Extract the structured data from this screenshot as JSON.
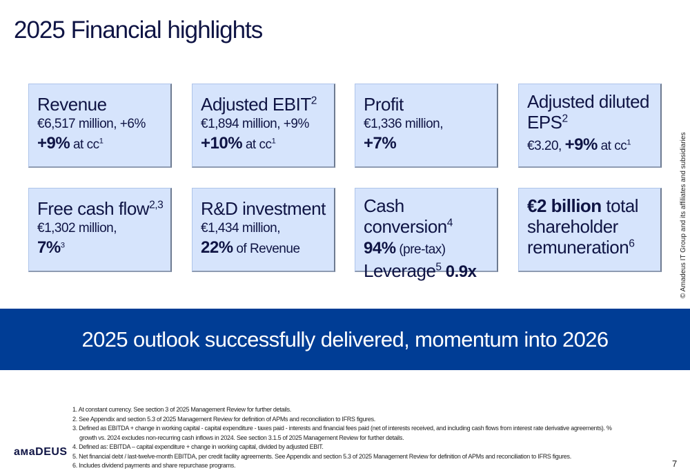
{
  "title": "2025 Financial highlights",
  "boxes": {
    "revenue": {
      "title": "Revenue",
      "line1": "€6,517 million, +6%",
      "bold": "+9%",
      "rest": " at cc",
      "sup": "1"
    },
    "ebit": {
      "title": "Adjusted EBIT",
      "title_sup": "2",
      "line1": "€1,894 million, +9%",
      "bold": "+10%",
      "rest": " at cc",
      "sup": "1"
    },
    "profit": {
      "title": "Profit",
      "line1": "€1,336 million,",
      "bold": "+7%"
    },
    "eps": {
      "title": "Adjusted diluted",
      "title2": "EPS",
      "title_sup": "2",
      "pre": "€3.20, ",
      "bold": "+9%",
      "rest": " at cc",
      "sup": "1"
    },
    "fcf": {
      "title": "Free cash flow",
      "title_sup": "2,3",
      "line1": "€1,302 million,",
      "bold": "7%",
      "sup": "3"
    },
    "rd": {
      "title": "R&D investment",
      "line1": "€1,434 million,",
      "bold": "22%",
      "rest": " of Revenue"
    },
    "cash": {
      "title": "Cash conversion",
      "title_sup": "4",
      "bold": "94%",
      "rest": " (pre-tax)",
      "lev": "Leverage",
      "lev_sup": "5",
      "lev_bold": " 0.9x"
    },
    "remun": {
      "bold": "€2 billion",
      "rest": " total",
      "line2": "shareholder",
      "line3": "remuneration",
      "sup": "6"
    }
  },
  "banner": "2025 outlook successfully delivered, momentum into 2026",
  "copyright": "© Amadeus IT Group and its affiliates and subsidiaries",
  "footnotes": [
    "1.  At constant currency. See section 3 of 2025 Management Review for further details.",
    "2. See Appendix and section 5.3 of 2025 Management Review for definition of APMs and reconciliation to IFRS figures.",
    "3. Defined as EBITDA + change in working capital - capital expenditure - taxes paid - interests and financial fees paid (net of interests received, and including cash flows from interest rate derivative agreements). %",
    "growth vs. 2024 excludes non-recurring cash inflows in 2024. See section 3.1.5 of 2025 Management Review for further details.",
    "4. Defined as: EBITDA – capital expenditure + change in working capital, divided by adjusted EBIT.",
    "5. Net financial debt / last-twelve-month EBITDA, per credit facility agreements. See Appendix and section 5.3 of 2025 Management Review for definition of APMs and reconciliation to IFRS figures.",
    "6. Includes dividend payments and share repurchase programs."
  ],
  "logo": "aмaDEUS",
  "page_number": "7"
}
